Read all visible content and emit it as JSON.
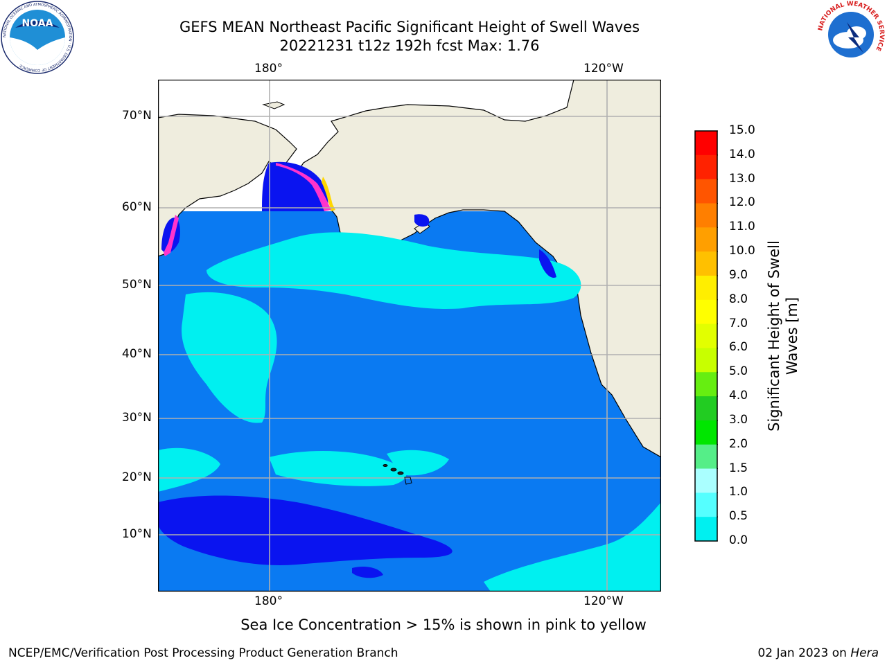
{
  "title": "GEFS MEAN Northeast Pacific Significant Height of Swell Waves",
  "subtitle": "20221231 t12z 192h fcst   Max: 1.76",
  "map": {
    "lon_labels": [
      "180°",
      "120°W"
    ],
    "lat_labels": [
      "70°N",
      "60°N",
      "50°N",
      "40°N",
      "30°N",
      "20°N",
      "10°N"
    ],
    "colors": {
      "land": "#efedde",
      "ice": "#ffffff",
      "wave_0_0_5": "#0a14f0",
      "wave_0_5_1_0": "#0a7af2",
      "wave_1_0_1_5": "#00f0f0",
      "ice_pink": "#ff33cc",
      "ice_yellow": "#ffd700"
    }
  },
  "colorbar": {
    "label": "Significant Height of Swell Waves [m]",
    "ticks": [
      "15.0",
      "14.0",
      "13.0",
      "12.0",
      "11.0",
      "10.0",
      "9.0",
      "8.0",
      "7.0",
      "6.0",
      "5.0",
      "4.0",
      "3.0",
      "2.0",
      "1.5",
      "1.0",
      "0.5",
      "0.0"
    ],
    "colors_top_to_bottom": [
      "#ff0000",
      "#ff2200",
      "#ff5500",
      "#ff7f00",
      "#ff9f00",
      "#ffc000",
      "#ffee00",
      "#ffff00",
      "#e2ff00",
      "#c8ff00",
      "#66ee11",
      "#22cc22",
      "#00e600",
      "#55ee88",
      "#aaffff",
      "#55ffff",
      "#00f0f0",
      "#0a7af2",
      "#0000ff"
    ]
  },
  "note": "Sea Ice Concentration > 15% is shown in pink to yellow",
  "footer": {
    "left": "NCEP/EMC/Verification Post Processing Product Generation Branch",
    "right_date": "02 Jan 2023 on ",
    "right_host": "Hera"
  },
  "logos": {
    "noaa": "NOAA",
    "noaa_ring": "NATIONAL OCEANIC AND ATMOSPHERIC ADMINISTRATION · U.S. DEPARTMENT OF COMMERCE",
    "nws_ring": "NATIONAL WEATHER SERVICE"
  }
}
